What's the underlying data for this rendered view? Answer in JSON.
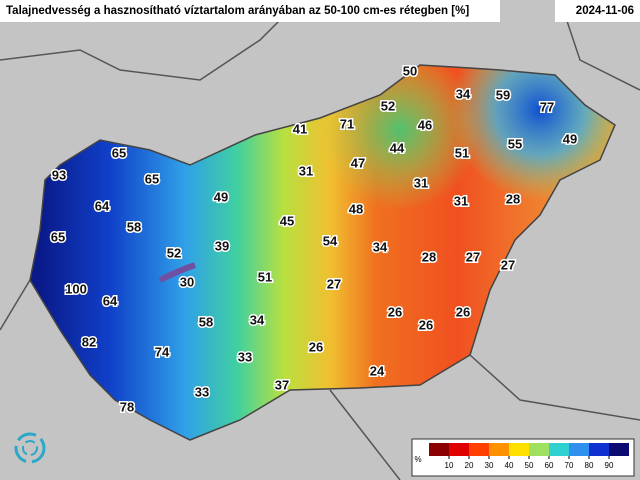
{
  "map": {
    "title": "Talajnedvesség a hasznosítható víztartalom arányában az 50-100 cm-es rétegben [%]",
    "date": "2024-11-06",
    "points": [
      50,
      34,
      59,
      77,
      52,
      46,
      41,
      71,
      49,
      55,
      65,
      44,
      51,
      47,
      93,
      65,
      31,
      31,
      49,
      31,
      28,
      64,
      48,
      45,
      58,
      65,
      54,
      39,
      34,
      52,
      28,
      27,
      27,
      51,
      30,
      27,
      100,
      64,
      26,
      26,
      26,
      58,
      34,
      82,
      26,
      74,
      33,
      24,
      37,
      33,
      78
    ],
    "legend": {
      "unit": "%",
      "ticks": [
        10,
        20,
        30,
        40,
        50,
        60,
        70,
        80,
        90
      ],
      "range": [
        0,
        100
      ]
    }
  }
}
